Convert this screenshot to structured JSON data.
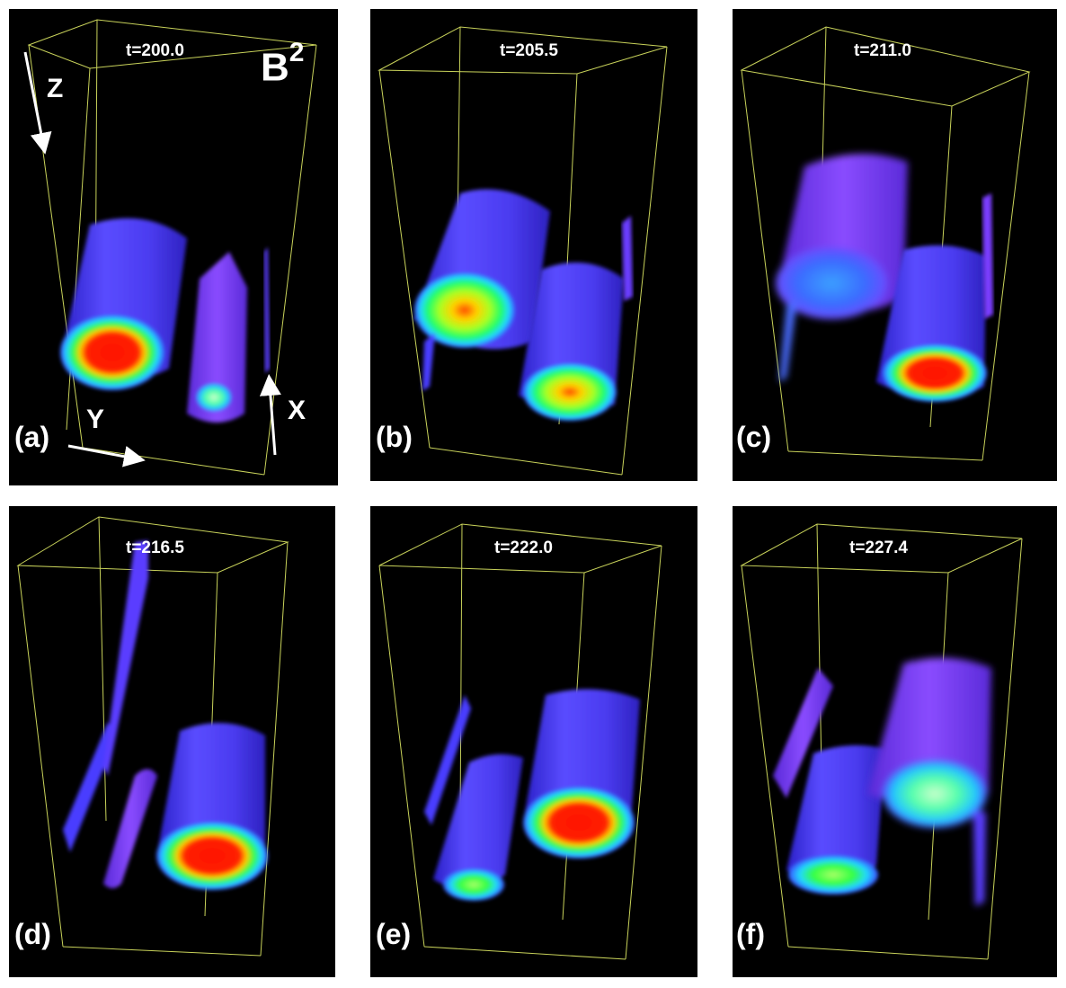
{
  "quantity_label": {
    "base": "B",
    "exponent": "2"
  },
  "axes": {
    "x": "X",
    "y": "Y",
    "z": "Z"
  },
  "panels": [
    {
      "label": "(a)",
      "time": "t=200.0"
    },
    {
      "label": "(b)",
      "time": "t=205.5"
    },
    {
      "label": "(c)",
      "time": "t=211.0"
    },
    {
      "label": "(d)",
      "time": "t=216.5"
    },
    {
      "label": "(e)",
      "time": "t=222.0"
    },
    {
      "label": "(f)",
      "time": "t=227.4"
    }
  ],
  "colors": {
    "background": "#000000",
    "box_edges": "#c8d25a",
    "cylinder_body": "#4a3cff",
    "core_hot": "#ff1a00",
    "core_warm": "#ffd400",
    "core_mid": "#22ff55",
    "rim": "#39c8ff"
  }
}
